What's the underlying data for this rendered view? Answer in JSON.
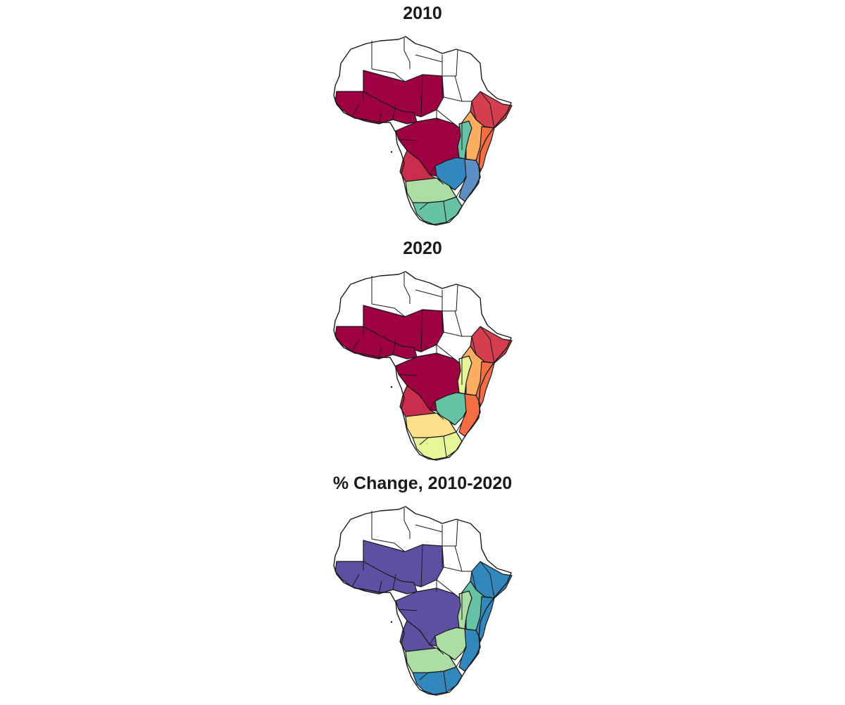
{
  "figure": {
    "panels": [
      {
        "title": "2010",
        "colors": {
          "west_africa": "#9e0142",
          "sahel_north": "#9e0142",
          "central": "#9e0142",
          "angola": "#c92d4b",
          "horn": "#d53e4f",
          "east_coast": "#f46d43",
          "east_inland": "#fdae61",
          "great_lakes": "#66c2a5",
          "zambia_malawi": "#3288bd",
          "mozambique": "#5e8fc4",
          "namibia_botswana": "#abdda4",
          "south_africa": "#66c2a5",
          "madagascar": "#ffffff"
        }
      },
      {
        "title": "2020",
        "colors": {
          "west_africa": "#9e0142",
          "sahel_north": "#9e0142",
          "central": "#9e0142",
          "angola": "#c92d4b",
          "horn": "#d53e4f",
          "east_coast": "#f46d43",
          "east_inland": "#fdae61",
          "great_lakes": "#e6f598",
          "zambia_malawi": "#66c2a5",
          "mozambique": "#f46d43",
          "namibia_botswana": "#fee08b",
          "south_africa": "#e6f598",
          "madagascar": "#ffffff"
        }
      },
      {
        "title": "% Change, 2010-2020",
        "colors": {
          "west_africa": "#5e4fa2",
          "sahel_north": "#5e4fa2",
          "central": "#5e4fa2",
          "angola": "#5e4fa2",
          "horn": "#3288bd",
          "east_coast": "#3288bd",
          "east_inland": "#66c2a5",
          "great_lakes": "#abdda4",
          "zambia_malawi": "#abdda4",
          "mozambique": "#3288bd",
          "namibia_botswana": "#abdda4",
          "south_africa": "#3288bd",
          "madagascar": "#ffffff"
        }
      }
    ]
  }
}
